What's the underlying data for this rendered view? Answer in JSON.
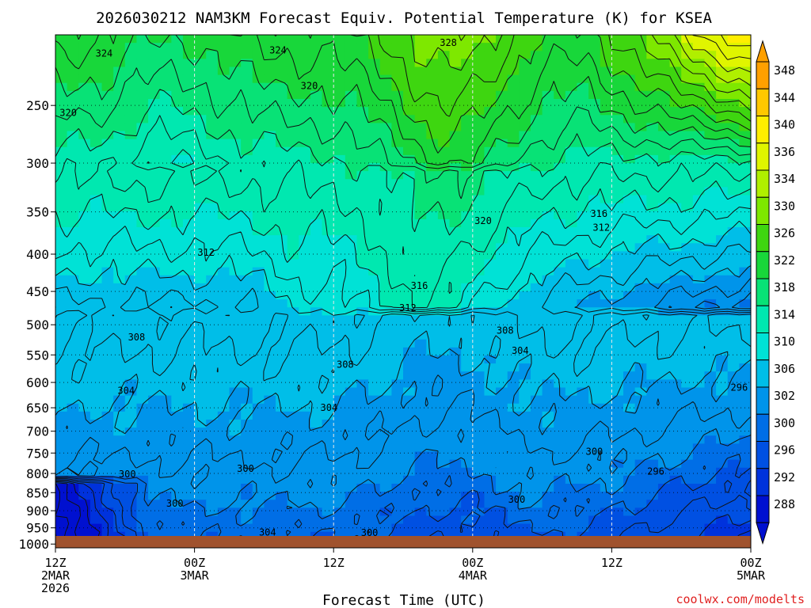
{
  "chart_data": {
    "type": "heatmap",
    "title": "2026030212 NAM3KM Forecast Equiv. Potential Temperature (K) for KSEA",
    "xlabel": "Forecast Time (UTC)",
    "ylabel": "",
    "credit": "coolwx.com/modelts",
    "x_ticks": [
      {
        "hour": 0,
        "lines": [
          "12Z",
          "2MAR",
          "2026"
        ]
      },
      {
        "hour": 12,
        "lines": [
          "00Z",
          "3MAR"
        ]
      },
      {
        "hour": 24,
        "lines": [
          "12Z"
        ]
      },
      {
        "hour": 36,
        "lines": [
          "00Z",
          "4MAR"
        ]
      },
      {
        "hour": 48,
        "lines": [
          "12Z"
        ]
      },
      {
        "hour": 60,
        "lines": [
          "00Z",
          "5MAR"
        ]
      }
    ],
    "xlim": [
      0,
      60
    ],
    "y_ticks": [
      250,
      300,
      350,
      400,
      450,
      500,
      550,
      600,
      650,
      700,
      750,
      800,
      850,
      900,
      950,
      1000
    ],
    "ylim": [
      1012,
      200
    ],
    "y_scale": "log-pressure",
    "grid": true,
    "colorbar": {
      "labels": [
        "348",
        "344",
        "340",
        "336",
        "334",
        "330",
        "326",
        "322",
        "318",
        "314",
        "310",
        "306",
        "302",
        "300",
        "296",
        "292",
        "288"
      ],
      "colors": [
        "#ffa000",
        "#ffc800",
        "#ffee00",
        "#e0f500",
        "#b0ef00",
        "#7ee800",
        "#3ed610",
        "#18d73a",
        "#08e276",
        "#00e8b0",
        "#00e2d6",
        "#00bee8",
        "#0094ea",
        "#006ee6",
        "#0050e2",
        "#0032dc",
        "#0010d0"
      ],
      "extend": "both"
    },
    "contour_labels": [
      {
        "text": "324",
        "hour": 4.2,
        "p": 212
      },
      {
        "text": "324",
        "hour": 19.2,
        "p": 210
      },
      {
        "text": "328",
        "hour": 33.9,
        "p": 205
      },
      {
        "text": "320",
        "hour": 1.1,
        "p": 256
      },
      {
        "text": "320",
        "hour": 21.9,
        "p": 235
      },
      {
        "text": "320",
        "hour": 36.9,
        "p": 360
      },
      {
        "text": "316",
        "hour": 46.9,
        "p": 352
      },
      {
        "text": "312",
        "hour": 47.1,
        "p": 368
      },
      {
        "text": "312",
        "hour": 13.0,
        "p": 398
      },
      {
        "text": "316",
        "hour": 31.4,
        "p": 442
      },
      {
        "text": "312",
        "hour": 30.4,
        "p": 474
      },
      {
        "text": "308",
        "hour": 7.0,
        "p": 520
      },
      {
        "text": "308",
        "hour": 38.8,
        "p": 509
      },
      {
        "text": "304",
        "hour": 40.1,
        "p": 543
      },
      {
        "text": "308",
        "hour": 25.0,
        "p": 567
      },
      {
        "text": "296",
        "hour": 59.0,
        "p": 610
      },
      {
        "text": "304",
        "hour": 6.1,
        "p": 616
      },
      {
        "text": "304",
        "hour": 23.6,
        "p": 650
      },
      {
        "text": "300",
        "hour": 46.5,
        "p": 747
      },
      {
        "text": "300",
        "hour": 6.2,
        "p": 802
      },
      {
        "text": "300",
        "hour": 16.4,
        "p": 788
      },
      {
        "text": "296",
        "hour": 51.8,
        "p": 795
      },
      {
        "text": "300",
        "hour": 10.3,
        "p": 880
      },
      {
        "text": "300",
        "hour": 39.8,
        "p": 869
      },
      {
        "text": "304",
        "hour": 18.3,
        "p": 964
      },
      {
        "text": "300",
        "hour": 27.1,
        "p": 965
      }
    ]
  }
}
